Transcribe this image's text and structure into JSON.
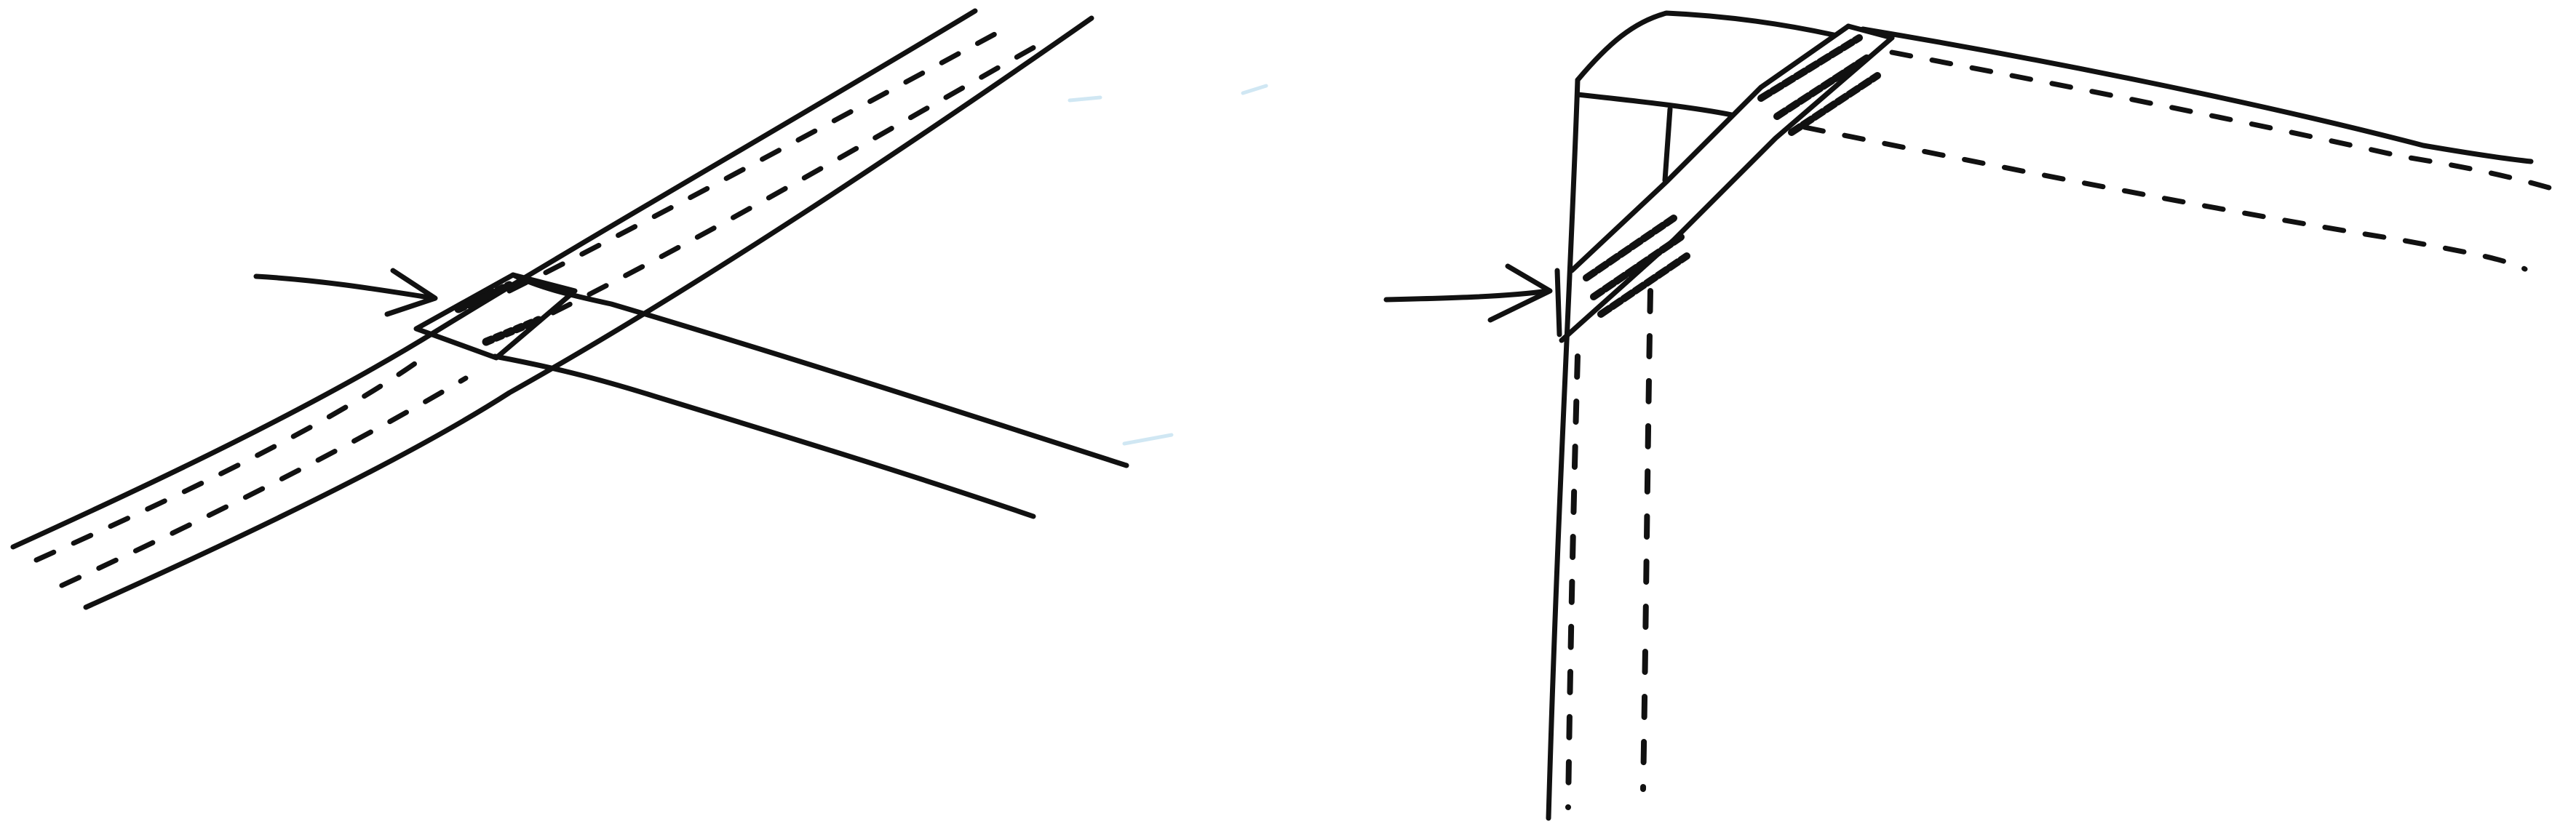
{
  "colors": {
    "background": "#ffffff",
    "ink": "#111111",
    "smudge": "#a9d3ea"
  }
}
